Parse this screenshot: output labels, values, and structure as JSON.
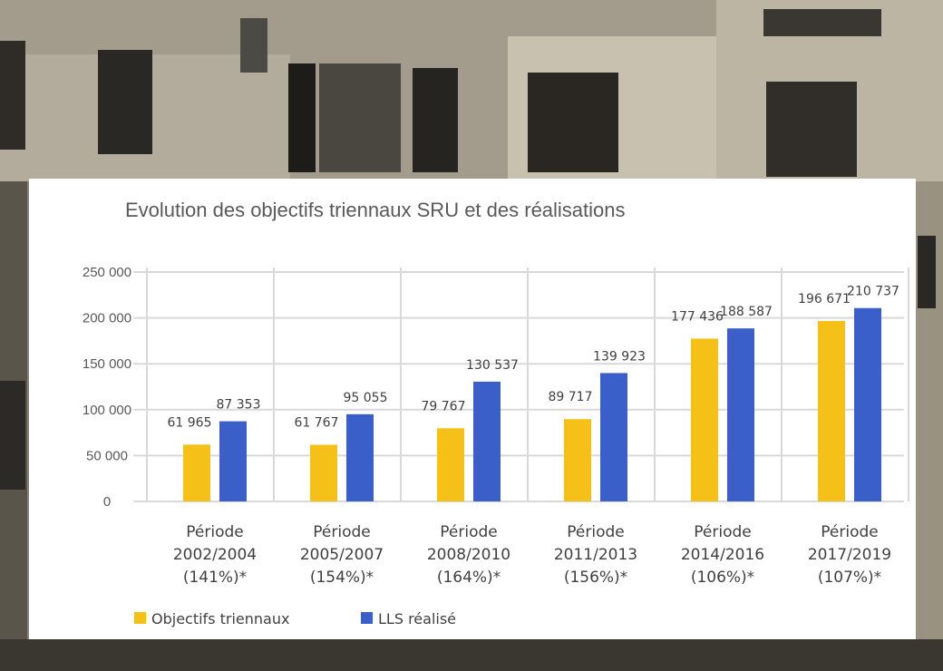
{
  "chart_data": {
    "type": "bar",
    "title": "Evolution des objectifs triennaux SRU et des réalisations",
    "xlabel": "",
    "ylabel": "",
    "ylim": [
      0,
      250000
    ],
    "yticks": [
      {
        "value": 0,
        "label": "0"
      },
      {
        "value": 50000,
        "label": "50 000"
      },
      {
        "value": 100000,
        "label": "100 000"
      },
      {
        "value": 150000,
        "label": "150 000"
      },
      {
        "value": 200000,
        "label": "200 000"
      },
      {
        "value": 250000,
        "label": "250 000"
      }
    ],
    "grid": true,
    "legend_position": "bottom-left",
    "categories": [
      {
        "line1": "Période",
        "line2": "2002/2004",
        "line3": "(141%)*"
      },
      {
        "line1": "Période",
        "line2": "2005/2007",
        "line3": "(154%)*"
      },
      {
        "line1": "Période",
        "line2": "2008/2010",
        "line3": "(164%)*"
      },
      {
        "line1": "Période",
        "line2": "2011/2013",
        "line3": "(156%)*"
      },
      {
        "line1": "Période",
        "line2": "2014/2016",
        "line3": "(106%)*"
      },
      {
        "line1": "Période",
        "line2": "2017/2019",
        "line3": "(107%)*"
      }
    ],
    "series": [
      {
        "name": "Objectifs triennaux",
        "color": "#f5c118",
        "values": [
          61965,
          61767,
          79767,
          89717,
          177436,
          196671
        ],
        "labels": [
          "61 965",
          "61 767",
          "79 767",
          "89 717",
          "177 436",
          "196 671"
        ]
      },
      {
        "name": "LLS réalisé",
        "color": "#3a5fc8",
        "values": [
          87353,
          95055,
          130537,
          139923,
          188587,
          210737
        ],
        "labels": [
          "87 353",
          "95 055",
          "130 537",
          "139 923",
          "188 587",
          "210 737"
        ]
      }
    ]
  }
}
